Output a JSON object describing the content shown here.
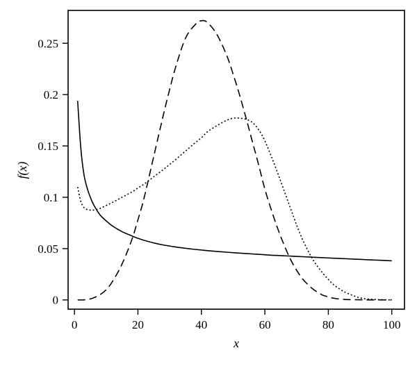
{
  "chart_data": {
    "type": "line",
    "title": "",
    "xlabel": "x",
    "ylabel": "f(x)",
    "xlim": [
      -2,
      104
    ],
    "ylim": [
      -0.009,
      0.282
    ],
    "x_ticks": [
      0,
      20,
      40,
      60,
      80,
      100
    ],
    "x_tick_labels": [
      "0",
      "20",
      "40",
      "60",
      "80",
      "100"
    ],
    "y_ticks": [
      0,
      0.05,
      0.1,
      0.15,
      0.2,
      0.25
    ],
    "y_tick_labels": [
      "0",
      "0.05",
      "0.1",
      "0.15",
      "0.2",
      "0.25"
    ],
    "grid": false,
    "legend": "none",
    "x": [
      1,
      2,
      3,
      4,
      5,
      6,
      8,
      10,
      12,
      15,
      18,
      20,
      22,
      25,
      28,
      30,
      32,
      35,
      38,
      40,
      42,
      45,
      48,
      50,
      52,
      54,
      56,
      58,
      60,
      62,
      64,
      66,
      68,
      70,
      72,
      75,
      78,
      80,
      82,
      85,
      88,
      90,
      92,
      95,
      98,
      100
    ],
    "series": [
      {
        "line_style": "solid",
        "color": "#000000",
        "values": [
          0.194,
          0.148,
          0.122,
          0.109,
          0.1,
          0.093,
          0.083,
          0.077,
          0.072,
          0.0665,
          0.0625,
          0.06,
          0.058,
          0.0555,
          0.0535,
          0.0525,
          0.0515,
          0.0503,
          0.0492,
          0.0486,
          0.048,
          0.0472,
          0.0465,
          0.046,
          0.0456,
          0.0452,
          0.0448,
          0.0444,
          0.044,
          0.0436,
          0.0433,
          0.043,
          0.0427,
          0.0424,
          0.0421,
          0.0416,
          0.0412,
          0.0409,
          0.0406,
          0.0402,
          0.0398,
          0.0395,
          0.0392,
          0.0388,
          0.0384,
          0.0381
        ]
      },
      {
        "line_style": "dashed",
        "color": "#000000",
        "values": [
          0.0,
          0.0,
          0.0,
          0.0005,
          0.001,
          0.002,
          0.005,
          0.01,
          0.018,
          0.035,
          0.058,
          0.078,
          0.1,
          0.14,
          0.18,
          0.205,
          0.228,
          0.255,
          0.268,
          0.272,
          0.27,
          0.258,
          0.238,
          0.22,
          0.2,
          0.178,
          0.155,
          0.132,
          0.108,
          0.088,
          0.07,
          0.054,
          0.04,
          0.029,
          0.02,
          0.011,
          0.005,
          0.003,
          0.0015,
          0.0005,
          0.0002,
          0.0001,
          0.0,
          0.0,
          0.0,
          0.0
        ]
      },
      {
        "line_style": "dotted",
        "color": "#000000",
        "values": [
          0.11,
          0.096,
          0.09,
          0.088,
          0.0875,
          0.0875,
          0.089,
          0.092,
          0.095,
          0.1,
          0.105,
          0.109,
          0.113,
          0.12,
          0.127,
          0.132,
          0.137,
          0.145,
          0.153,
          0.158,
          0.164,
          0.17,
          0.175,
          0.177,
          0.177,
          0.176,
          0.173,
          0.166,
          0.155,
          0.14,
          0.124,
          0.107,
          0.09,
          0.073,
          0.058,
          0.04,
          0.027,
          0.02,
          0.014,
          0.008,
          0.004,
          0.002,
          0.001,
          0.0004,
          0.0001,
          0.0
        ]
      }
    ]
  }
}
